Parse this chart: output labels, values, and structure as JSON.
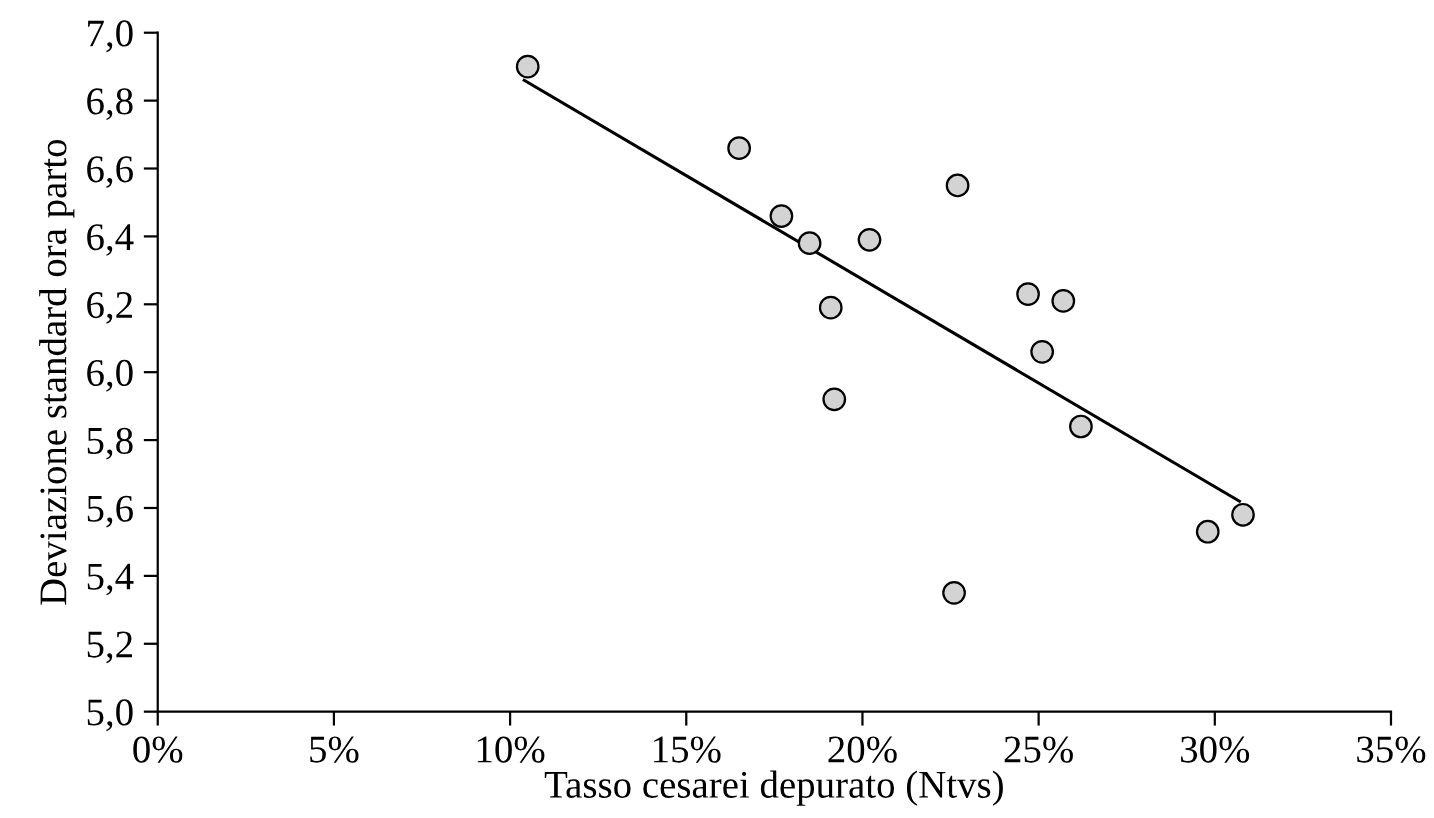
{
  "chart_data": {
    "type": "scatter",
    "xlabel": "Tasso cesarei depurato (Ntvs)",
    "ylabel": "Deviazione standard ora parto",
    "xlim": [
      0,
      35
    ],
    "xticks": [
      {
        "value": 0,
        "label": "0%"
      },
      {
        "value": 5,
        "label": "5%"
      },
      {
        "value": 10,
        "label": "10%"
      },
      {
        "value": 15,
        "label": "15%"
      },
      {
        "value": 20,
        "label": "20%"
      },
      {
        "value": 25,
        "label": "25%"
      },
      {
        "value": 30,
        "label": "30%"
      },
      {
        "value": 35,
        "label": "35%"
      }
    ],
    "ylim": [
      5.0,
      7.0
    ],
    "yticks": [
      {
        "value": 5.0,
        "label": "5,0"
      },
      {
        "value": 5.2,
        "label": "5,2"
      },
      {
        "value": 5.4,
        "label": "5,4"
      },
      {
        "value": 5.6,
        "label": "5,6"
      },
      {
        "value": 5.8,
        "label": "5,8"
      },
      {
        "value": 6.0,
        "label": "6,0"
      },
      {
        "value": 6.2,
        "label": "6,2"
      },
      {
        "value": 6.4,
        "label": "6,4"
      },
      {
        "value": 6.6,
        "label": "6,6"
      },
      {
        "value": 6.8,
        "label": "6,8"
      },
      {
        "value": 7.0,
        "label": "7,0"
      }
    ],
    "grid": false,
    "series": [
      {
        "marker": "circle",
        "color": "#d3d3d3",
        "x": [
          10.5,
          16.5,
          17.7,
          18.5,
          20.2,
          22.7,
          19.1,
          19.2,
          22.6,
          24.7,
          25.7,
          25.1,
          26.2,
          29.8,
          30.8
        ],
        "values": [
          6.9,
          6.66,
          6.46,
          6.38,
          6.39,
          6.55,
          6.19,
          5.92,
          5.35,
          6.23,
          6.21,
          6.06,
          5.84,
          5.53,
          5.58
        ]
      },
      {
        "type": "line",
        "marker": "none",
        "color": "#000000",
        "x": [
          10.4,
          30.7
        ],
        "values": [
          6.86,
          5.62
        ]
      }
    ]
  }
}
